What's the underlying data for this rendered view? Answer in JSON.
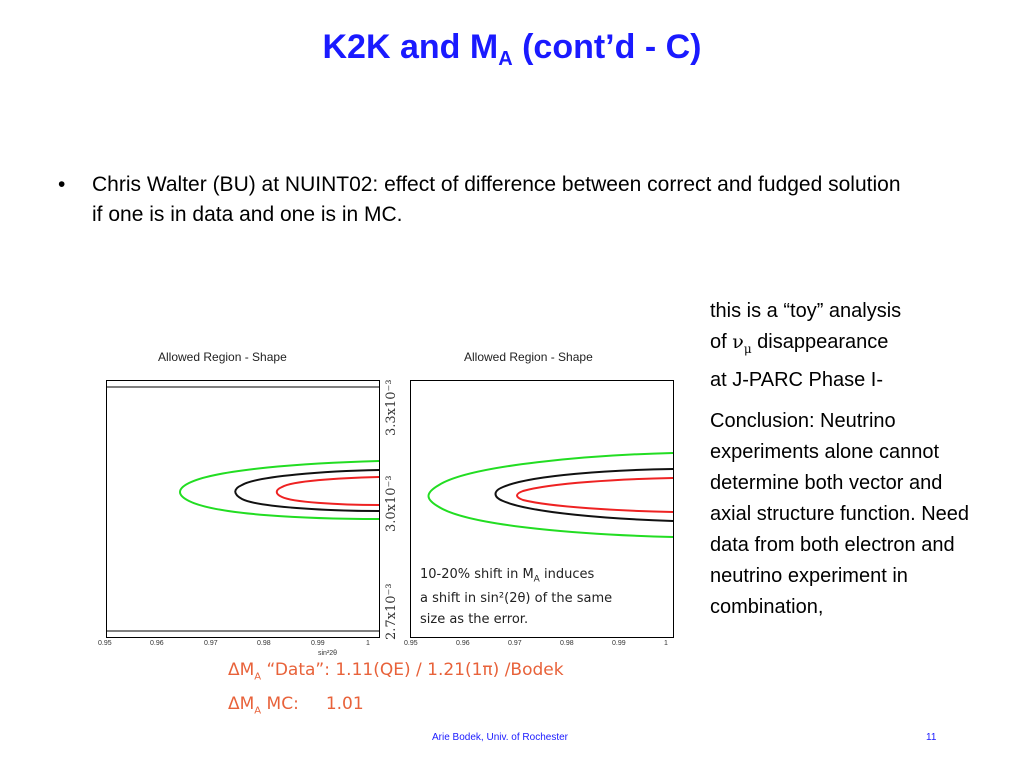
{
  "slide": {
    "title_main": "K2K and M",
    "title_sub": "A",
    "title_rest": " (cont’d - C)",
    "bullet_symbol": "•",
    "bullet": "Chris Walter (BU) at NUINT02: effect of difference between correct and fudged solution if one is in data and one is in MC."
  },
  "side_text": {
    "line1": "this is a “toy” analysis",
    "of_word": "of ",
    "nu": "ν",
    "mu": "μ",
    "line2_rest": " disappearance",
    "line3": "at J-PARC Phase I-",
    "conclusion": "Conclusion: Neutrino experiments alone cannot determine both vector and axial structure function. Need data from both electron and neutrino experiment in combination,"
  },
  "figure": {
    "left_title": "Allowed Region - Shape",
    "right_title": "Allowed Region - Shape",
    "x_ticks": [
      "0.95",
      "0.96",
      "0.97",
      "0.98",
      "0.99",
      "1"
    ],
    "x_label": "sin²2θ",
    "y_ticks": [
      "3.3x10⁻³",
      "3.0x10⁻³",
      "2.7x10⁻³"
    ],
    "contour_colors": {
      "outer": "#22dd22",
      "middle": "#111111",
      "inner": "#ee2222"
    },
    "note_line1_a": "10-20% shift in M",
    "note_line1_sub": "A",
    "note_line1_b": " induces",
    "note_line2": "a shift in sin²(2θ) of the same",
    "note_line3": "size as the error.",
    "dm1_label": "ΔM",
    "dm1_sub": "A",
    "dm1_text": " “Data”: 1.11(QE) / 1.21(1π) /Bodek",
    "dm2_label": "ΔM",
    "dm2_sub": "A",
    "dm2_text": " MC:     1.01"
  },
  "footer": {
    "author": "Arie Bodek,  Univ. of Rochester",
    "page": "11"
  }
}
